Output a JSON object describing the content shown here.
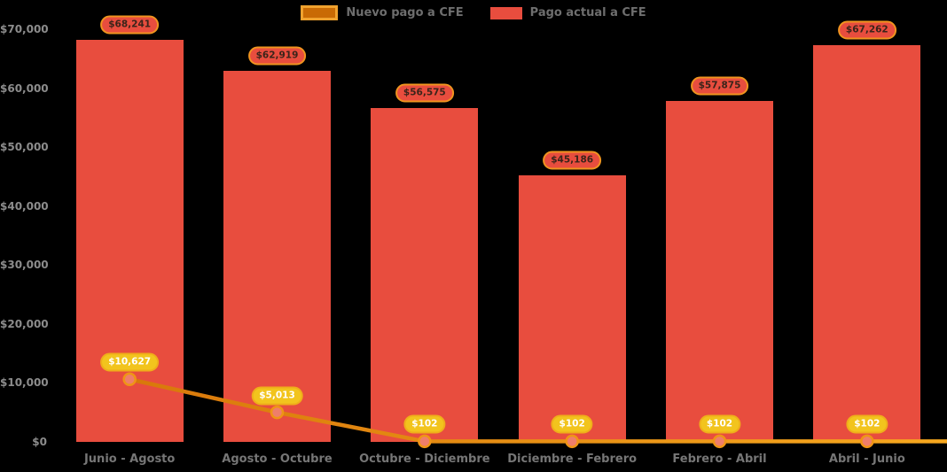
{
  "colors": {
    "background": "#000000",
    "bar_fill": "#e84d3e",
    "line_stroke_start": "#d8780a",
    "line_stroke_end": "#f7a81f",
    "marker_fill": "#ef7e6a",
    "marker_stroke": "#ef9416",
    "bar_label_bg": "#e84d3e",
    "bar_label_border": "#f0941f",
    "line_label_bg": "#f2c41d",
    "axis_text": "#8c8c8c",
    "legend_text": "#6e6e6e"
  },
  "chart_data": {
    "type": "bar",
    "title": "",
    "xlabel": "",
    "ylabel": "",
    "grid": "off",
    "legend_position": "top-center",
    "background": "#000000",
    "ylim": [
      0,
      70000
    ],
    "y_ticks": [
      {
        "label": "$0",
        "value": 0
      },
      {
        "label": "$10,000",
        "value": 10000
      },
      {
        "label": "$20,000",
        "value": 20000
      },
      {
        "label": "$30,000",
        "value": 30000
      },
      {
        "label": "$40,000",
        "value": 40000
      },
      {
        "label": "$50,000",
        "value": 50000
      },
      {
        "label": "$60,000",
        "value": 60000
      },
      {
        "label": "$70,000",
        "value": 70000
      }
    ],
    "categories": [
      "Junio - Agosto",
      "Agosto - Octubre",
      "Octubre - Diciembre",
      "Diciembre - Febrero",
      "Febrero - Abril",
      "Abril - Junio"
    ],
    "series": [
      {
        "name": "Nuevo pago a CFE",
        "type": "line",
        "color": "#f0981c",
        "values": [
          10627,
          5013,
          102,
          102,
          102,
          102
        ],
        "labels": [
          "$10,627",
          "$5,013",
          "$102",
          "$102",
          "$102",
          "$102"
        ]
      },
      {
        "name": "Pago actual a CFE",
        "type": "bar",
        "color": "#e84d3e",
        "values": [
          68241,
          62919,
          56575,
          45186,
          57875,
          67262
        ],
        "labels": [
          "$68,241",
          "$62,919",
          "$56,575",
          "$45,186",
          "$57,875",
          "$67,262"
        ]
      }
    ]
  }
}
